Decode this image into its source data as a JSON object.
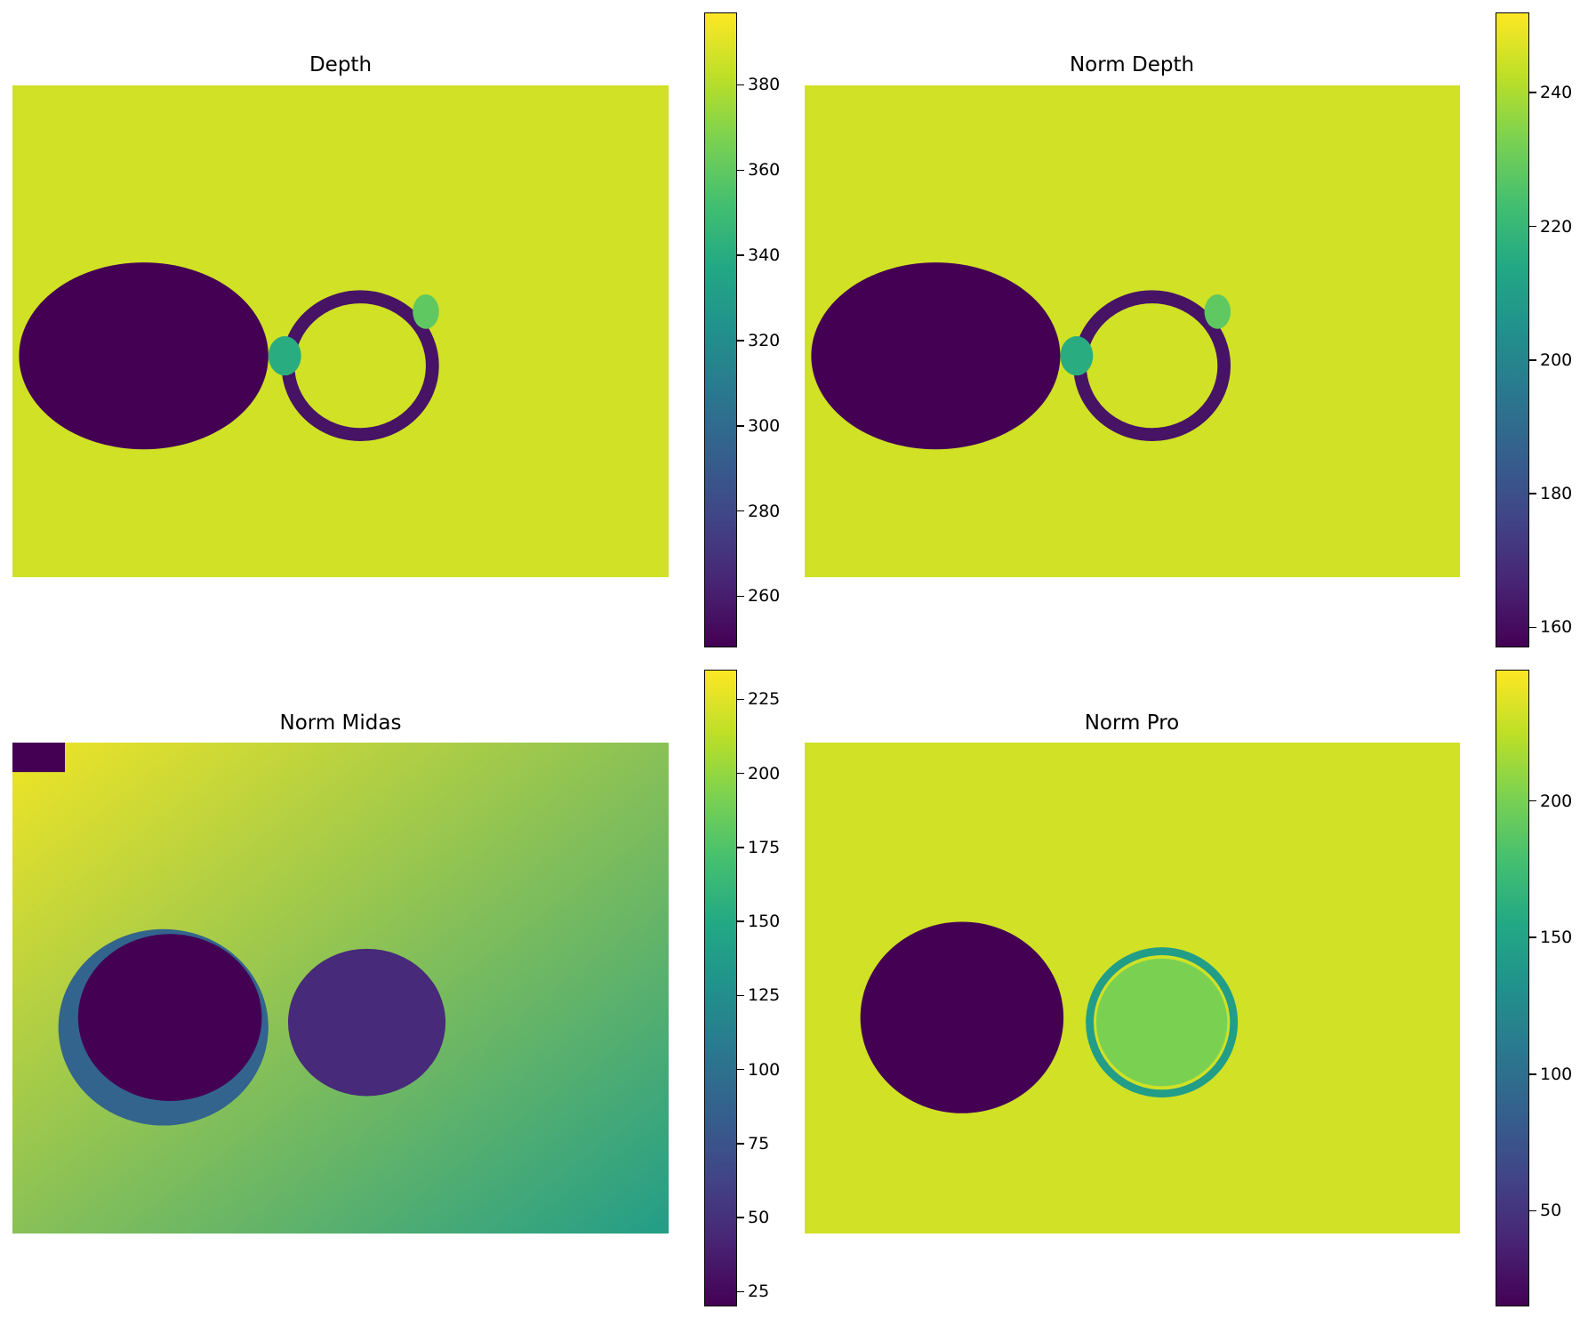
{
  "charts": [
    {
      "type": "heatmap",
      "title": "Depth",
      "colormap": "viridis",
      "colorbar": {
        "min": 248,
        "max": 397,
        "ticks": [
          260,
          280,
          300,
          320,
          340,
          360,
          380
        ]
      },
      "background_level": 0.93,
      "regions": [
        {
          "shape": "ellipse",
          "cx": 0.2,
          "cy": 0.55,
          "rx": 0.19,
          "ry": 0.19,
          "level": 0.0,
          "label": "large-disk"
        },
        {
          "shape": "ring",
          "cx": 0.53,
          "cy": 0.57,
          "rx": 0.11,
          "ry": 0.14,
          "width": 0.02,
          "level": 0.05,
          "label": "ring"
        },
        {
          "shape": "ellipse",
          "cx": 0.415,
          "cy": 0.55,
          "rx": 0.025,
          "ry": 0.04,
          "level": 0.62,
          "label": "bridge"
        },
        {
          "shape": "ellipse",
          "cx": 0.63,
          "cy": 0.46,
          "rx": 0.02,
          "ry": 0.035,
          "level": 0.75,
          "label": "edge-glow"
        }
      ]
    },
    {
      "type": "heatmap",
      "title": "Norm Depth",
      "colormap": "viridis",
      "colorbar": {
        "min": 157,
        "max": 252,
        "ticks": [
          160,
          180,
          200,
          220,
          240
        ]
      },
      "background_level": 0.93,
      "regions": [
        {
          "shape": "ellipse",
          "cx": 0.2,
          "cy": 0.55,
          "rx": 0.19,
          "ry": 0.19,
          "level": 0.0,
          "label": "large-disk"
        },
        {
          "shape": "ring",
          "cx": 0.53,
          "cy": 0.57,
          "rx": 0.11,
          "ry": 0.14,
          "width": 0.02,
          "level": 0.05,
          "label": "ring"
        },
        {
          "shape": "ellipse",
          "cx": 0.415,
          "cy": 0.55,
          "rx": 0.025,
          "ry": 0.04,
          "level": 0.62,
          "label": "bridge"
        },
        {
          "shape": "ellipse",
          "cx": 0.63,
          "cy": 0.46,
          "rx": 0.02,
          "ry": 0.035,
          "level": 0.75,
          "label": "edge-glow"
        }
      ]
    },
    {
      "type": "heatmap",
      "title": "Norm Midas",
      "colormap": "viridis",
      "colorbar": {
        "min": 20,
        "max": 235,
        "ticks": [
          25,
          50,
          75,
          100,
          125,
          150,
          175,
          200,
          225
        ]
      },
      "background_gradient": {
        "from_level": 0.98,
        "to_level": 0.55
      },
      "regions": [
        {
          "shape": "ellipse",
          "cx": 0.23,
          "cy": 0.58,
          "rx": 0.16,
          "ry": 0.2,
          "level": 0.32,
          "label": "large-disk-halo"
        },
        {
          "shape": "ellipse",
          "cx": 0.24,
          "cy": 0.56,
          "rx": 0.14,
          "ry": 0.17,
          "level": 0.0,
          "label": "large-disk"
        },
        {
          "shape": "ellipse",
          "cx": 0.54,
          "cy": 0.57,
          "rx": 0.12,
          "ry": 0.15,
          "level": 0.12,
          "label": "small-disk"
        },
        {
          "shape": "rect",
          "x": 0.0,
          "y": 0.0,
          "w": 0.08,
          "h": 0.06,
          "level": 0.0,
          "label": "corner-patch"
        }
      ]
    },
    {
      "type": "heatmap",
      "title": "Norm Pro",
      "colormap": "viridis",
      "colorbar": {
        "min": 15,
        "max": 248,
        "ticks": [
          50,
          100,
          150,
          200
        ]
      },
      "background_level": 0.93,
      "regions": [
        {
          "shape": "ellipse",
          "cx": 0.24,
          "cy": 0.56,
          "rx": 0.155,
          "ry": 0.195,
          "level": 0.0,
          "label": "large-disk"
        },
        {
          "shape": "ring",
          "cx": 0.545,
          "cy": 0.57,
          "rx": 0.11,
          "ry": 0.145,
          "width": 0.012,
          "level": 0.55,
          "label": "ring"
        },
        {
          "shape": "ellipse",
          "cx": 0.545,
          "cy": 0.57,
          "rx": 0.1,
          "ry": 0.13,
          "level": 0.8,
          "label": "ring-inner"
        }
      ]
    }
  ]
}
